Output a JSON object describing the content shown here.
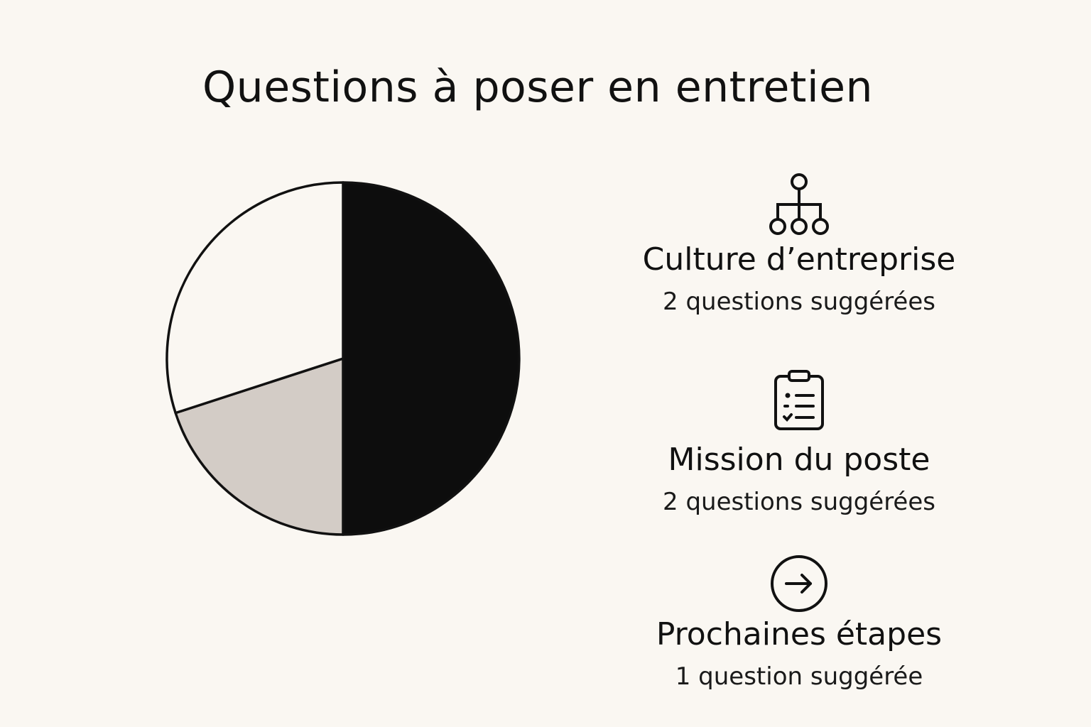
{
  "chart_data": {
    "type": "pie",
    "title": "Questions à poser en entretien",
    "slices": [
      {
        "label": "Culture d’entreprise",
        "value": 50,
        "color": "#0d0d0d"
      },
      {
        "label": "Mission du poste",
        "value": 20,
        "color": "#d3ccc6"
      },
      {
        "label": "Prochaines étapes",
        "value": 30,
        "color": "#faf7f2"
      }
    ],
    "legend_placement": "right"
  },
  "legend": [
    {
      "icon": "org-chart-icon",
      "name": "Culture d’entreprise",
      "count": "2 questions suggérées"
    },
    {
      "icon": "clipboard-checklist-icon",
      "name": "Mission du poste",
      "count": "2 questions suggérées"
    },
    {
      "icon": "arrow-right-circle-icon",
      "name": "Prochaines étapes",
      "count": "1 question suggérée"
    }
  ]
}
